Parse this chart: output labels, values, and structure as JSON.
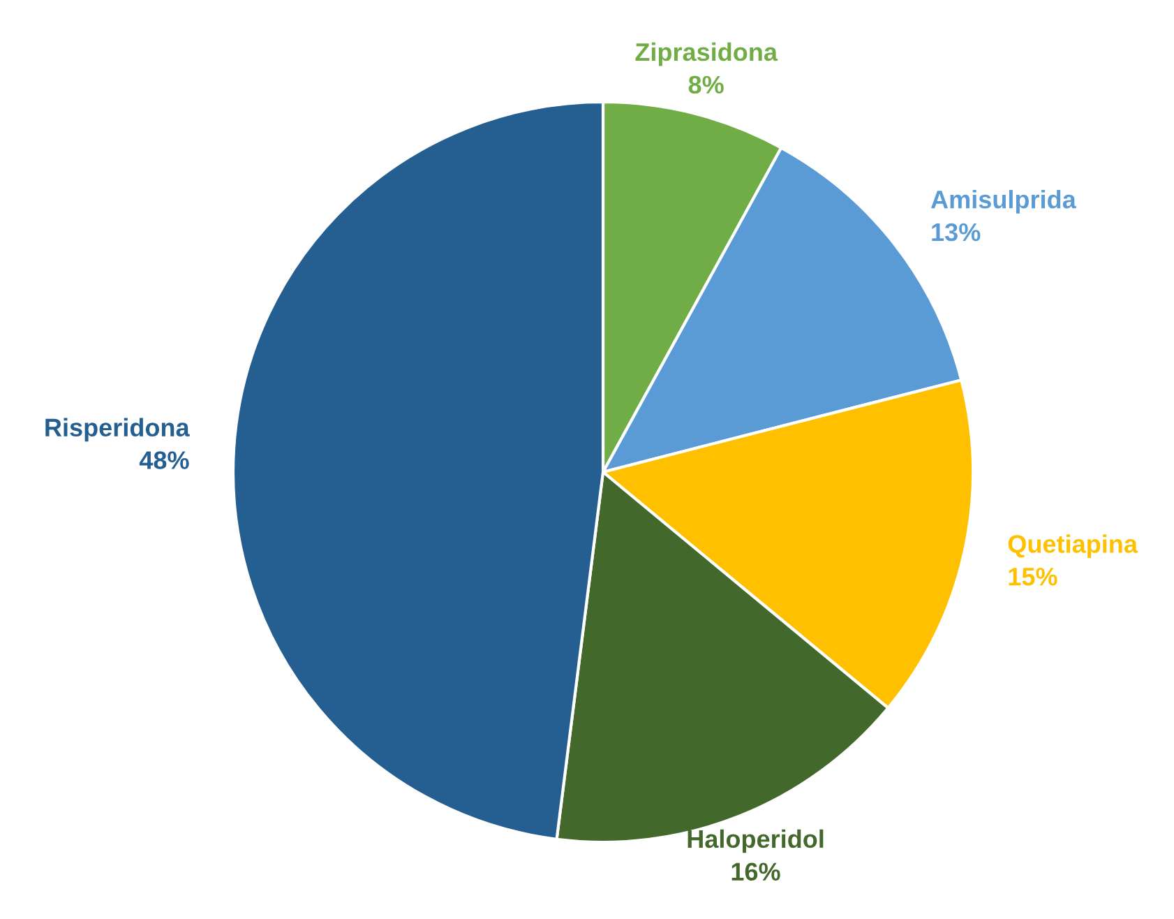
{
  "chart_data": {
    "type": "pie",
    "categories": [
      "Ziprasidona",
      "Amisulprida",
      "Quetiapina",
      "Haloperidol",
      "Risperidona"
    ],
    "values": [
      8,
      13,
      15,
      16,
      48
    ],
    "value_labels": [
      "8%",
      "13%",
      "15%",
      "16%",
      "48%"
    ],
    "colors": [
      "#70ad47",
      "#5b9bd5",
      "#ffc000",
      "#43682b",
      "#255e91"
    ],
    "legend": false
  }
}
